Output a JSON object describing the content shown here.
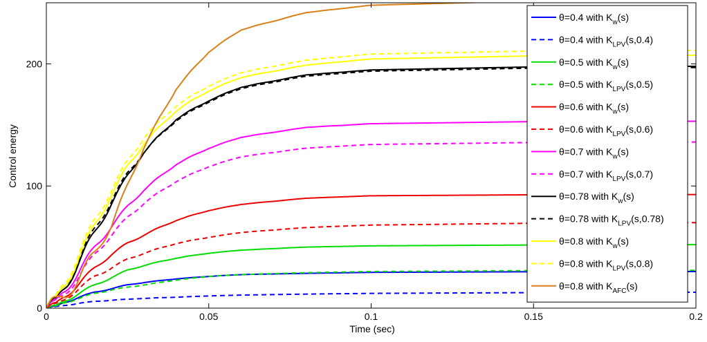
{
  "chart_data": {
    "type": "line",
    "title": "",
    "xlabel": "Time (sec)",
    "ylabel": "Control energy",
    "xlim": [
      0,
      0.2
    ],
    "ylim": [
      0,
      250
    ],
    "xticks": [
      0,
      0.05,
      0.1,
      0.15,
      0.2
    ],
    "xtick_labels": [
      "0",
      "0.05",
      "0.1",
      "0.15",
      "0.2"
    ],
    "yticks": [
      0,
      100,
      200
    ],
    "ytick_labels": [
      "0",
      "100",
      "200"
    ],
    "grid": false,
    "legend_position": "top-right",
    "series": [
      {
        "name": "θ=0.4 with K_w(s)",
        "label_main": "θ=0.4 with K",
        "label_sub": "w",
        "label_tail": "(s)",
        "color": "#0000ff",
        "dash": "solid",
        "final": 30,
        "points": [
          [
            0,
            0
          ],
          [
            0.003,
            1
          ],
          [
            0.005,
            4
          ],
          [
            0.01,
            9
          ],
          [
            0.015,
            13
          ],
          [
            0.02,
            16
          ],
          [
            0.025,
            19
          ],
          [
            0.03,
            21
          ],
          [
            0.04,
            24
          ],
          [
            0.05,
            26
          ],
          [
            0.06,
            27.5
          ],
          [
            0.08,
            28.5
          ],
          [
            0.1,
            29.3
          ],
          [
            0.15,
            29.8
          ],
          [
            0.2,
            30
          ]
        ]
      },
      {
        "name": "θ=0.4 with K_LPV(s,0.4)",
        "label_main": "θ=0.4 with K",
        "label_sub": "LPV",
        "label_tail": "(s,0.4)",
        "color": "#0000ff",
        "dash": "dashed",
        "final": 13,
        "points": [
          [
            0,
            0
          ],
          [
            0.003,
            1
          ],
          [
            0.005,
            2
          ],
          [
            0.01,
            4
          ],
          [
            0.015,
            5.5
          ],
          [
            0.02,
            6.5
          ],
          [
            0.03,
            8
          ],
          [
            0.04,
            9
          ],
          [
            0.05,
            10
          ],
          [
            0.06,
            10.7
          ],
          [
            0.08,
            11.5
          ],
          [
            0.1,
            12.1
          ],
          [
            0.15,
            12.7
          ],
          [
            0.2,
            13
          ]
        ]
      },
      {
        "name": "θ=0.5 with K_w(s)",
        "label_main": "θ=0.5 with K",
        "label_sub": "w",
        "label_tail": "(s)",
        "color": "#00dd00",
        "dash": "solid",
        "final": 52,
        "points": [
          [
            0,
            0
          ],
          [
            0.003,
            1
          ],
          [
            0.005,
            5
          ],
          [
            0.01,
            12
          ],
          [
            0.015,
            19
          ],
          [
            0.02,
            25
          ],
          [
            0.025,
            31
          ],
          [
            0.03,
            35
          ],
          [
            0.04,
            41
          ],
          [
            0.05,
            45
          ],
          [
            0.06,
            47.5
          ],
          [
            0.08,
            50
          ],
          [
            0.1,
            51
          ],
          [
            0.15,
            51.7
          ],
          [
            0.2,
            52
          ]
        ]
      },
      {
        "name": "θ=0.5 with K_LPV(s,0.5)",
        "label_main": "θ=0.5 with K",
        "label_sub": "LPV",
        "label_tail": "(s,0.5)",
        "color": "#00dd00",
        "dash": "dashed",
        "final": 31,
        "points": [
          [
            0,
            0
          ],
          [
            0.003,
            1
          ],
          [
            0.005,
            4
          ],
          [
            0.01,
            8
          ],
          [
            0.015,
            12
          ],
          [
            0.02,
            15
          ],
          [
            0.025,
            17
          ],
          [
            0.03,
            19
          ],
          [
            0.04,
            23
          ],
          [
            0.05,
            26
          ],
          [
            0.06,
            27.5
          ],
          [
            0.08,
            29
          ],
          [
            0.1,
            30
          ],
          [
            0.15,
            30.7
          ],
          [
            0.2,
            31
          ]
        ]
      },
      {
        "name": "θ=0.6 with K_w(s)",
        "label_main": "θ=0.6 with K",
        "label_sub": "w",
        "label_tail": "(s)",
        "color": "#ee0000",
        "dash": "solid",
        "final": 93,
        "points": [
          [
            0,
            0
          ],
          [
            0.003,
            2
          ],
          [
            0.005,
            8
          ],
          [
            0.01,
            20
          ],
          [
            0.015,
            33
          ],
          [
            0.02,
            44
          ],
          [
            0.025,
            53
          ],
          [
            0.03,
            60
          ],
          [
            0.04,
            72
          ],
          [
            0.05,
            80
          ],
          [
            0.06,
            85
          ],
          [
            0.08,
            90
          ],
          [
            0.1,
            92
          ],
          [
            0.15,
            92.8
          ],
          [
            0.2,
            93
          ]
        ]
      },
      {
        "name": "θ=0.6 with K_LPV(s,0.6)",
        "label_main": "θ=0.6 with K",
        "label_sub": "LPV",
        "label_tail": "(s,0.6)",
        "color": "#ee0000",
        "dash": "dashed",
        "final": 70,
        "points": [
          [
            0,
            0
          ],
          [
            0.003,
            2
          ],
          [
            0.005,
            6
          ],
          [
            0.01,
            16
          ],
          [
            0.015,
            26
          ],
          [
            0.02,
            33
          ],
          [
            0.025,
            40
          ],
          [
            0.03,
            45
          ],
          [
            0.04,
            53
          ],
          [
            0.05,
            58
          ],
          [
            0.06,
            62
          ],
          [
            0.08,
            66
          ],
          [
            0.1,
            68
          ],
          [
            0.15,
            69.5
          ],
          [
            0.2,
            70
          ]
        ]
      },
      {
        "name": "θ=0.7 with K_w(s)",
        "label_main": "θ=0.7 with K",
        "label_sub": "w",
        "label_tail": "(s)",
        "color": "#ff00ff",
        "dash": "solid",
        "final": 153,
        "points": [
          [
            0,
            0
          ],
          [
            0.003,
            3
          ],
          [
            0.005,
            12
          ],
          [
            0.01,
            30
          ],
          [
            0.015,
            50
          ],
          [
            0.02,
            67
          ],
          [
            0.025,
            83
          ],
          [
            0.03,
            97
          ],
          [
            0.04,
            118
          ],
          [
            0.05,
            131
          ],
          [
            0.06,
            140
          ],
          [
            0.08,
            148
          ],
          [
            0.1,
            151
          ],
          [
            0.15,
            152.7
          ],
          [
            0.2,
            153
          ]
        ]
      },
      {
        "name": "θ=0.7 with K_LPV(s,0.7)",
        "label_main": "θ=0.7 with K",
        "label_sub": "LPV",
        "label_tail": "(s,0.7)",
        "color": "#ff00ff",
        "dash": "dashed",
        "final": 136,
        "points": [
          [
            0,
            0
          ],
          [
            0.003,
            3
          ],
          [
            0.005,
            10
          ],
          [
            0.01,
            26
          ],
          [
            0.015,
            44
          ],
          [
            0.02,
            60
          ],
          [
            0.025,
            74
          ],
          [
            0.03,
            86
          ],
          [
            0.04,
            104
          ],
          [
            0.05,
            116
          ],
          [
            0.06,
            124
          ],
          [
            0.08,
            131
          ],
          [
            0.1,
            134
          ],
          [
            0.15,
            135.6
          ],
          [
            0.2,
            136
          ]
        ]
      },
      {
        "name": "θ=0.78 with K_w(s)",
        "label_main": "θ=0.78 with K",
        "label_sub": "w",
        "label_tail": "(s)",
        "color": "#000000",
        "dash": "solid",
        "final": 198,
        "points": [
          [
            0,
            0
          ],
          [
            0.003,
            3
          ],
          [
            0.005,
            14
          ],
          [
            0.01,
            38
          ],
          [
            0.015,
            62
          ],
          [
            0.02,
            86
          ],
          [
            0.025,
            108
          ],
          [
            0.03,
            128
          ],
          [
            0.04,
            155
          ],
          [
            0.05,
            170
          ],
          [
            0.06,
            181
          ],
          [
            0.08,
            191
          ],
          [
            0.1,
            195
          ],
          [
            0.15,
            197.5
          ],
          [
            0.2,
            198
          ]
        ]
      },
      {
        "name": "θ=0.78 with K_LPV(s,0.78)",
        "label_main": "θ=0.78 with K",
        "label_sub": "LPV",
        "label_tail": "(s,0.78)",
        "color": "#000000",
        "dash": "dashed",
        "final": 197,
        "points": [
          [
            0,
            0
          ],
          [
            0.003,
            4
          ],
          [
            0.005,
            16
          ],
          [
            0.01,
            40
          ],
          [
            0.015,
            65
          ],
          [
            0.02,
            88
          ],
          [
            0.025,
            110
          ],
          [
            0.03,
            128
          ],
          [
            0.04,
            154
          ],
          [
            0.05,
            169
          ],
          [
            0.06,
            180
          ],
          [
            0.08,
            190
          ],
          [
            0.1,
            194
          ],
          [
            0.15,
            196.5
          ],
          [
            0.2,
            197
          ]
        ]
      },
      {
        "name": "θ=0.8 with K_w(s)",
        "label_main": "θ=0.8 with K",
        "label_sub": "w",
        "label_tail": "(s)",
        "color": "#ffff00",
        "dash": "solid",
        "final": 207,
        "points": [
          [
            0,
            0
          ],
          [
            0.003,
            4
          ],
          [
            0.005,
            16
          ],
          [
            0.01,
            42
          ],
          [
            0.015,
            68
          ],
          [
            0.02,
            93
          ],
          [
            0.025,
            116
          ],
          [
            0.03,
            135
          ],
          [
            0.04,
            162
          ],
          [
            0.05,
            178
          ],
          [
            0.06,
            189
          ],
          [
            0.08,
            199
          ],
          [
            0.1,
            204
          ],
          [
            0.15,
            206.5
          ],
          [
            0.2,
            207
          ]
        ]
      },
      {
        "name": "θ=0.8 with K_LPV(s,0.8)",
        "label_main": "θ=0.8 with K",
        "label_sub": "LPV",
        "label_tail": "(s,0.8)",
        "color": "#ffff00",
        "dash": "dashed",
        "final": 211,
        "points": [
          [
            0,
            0
          ],
          [
            0.003,
            5
          ],
          [
            0.005,
            18
          ],
          [
            0.01,
            45
          ],
          [
            0.015,
            72
          ],
          [
            0.02,
            97
          ],
          [
            0.025,
            120
          ],
          [
            0.03,
            140
          ],
          [
            0.04,
            166
          ],
          [
            0.05,
            182
          ],
          [
            0.06,
            193
          ],
          [
            0.08,
            203
          ],
          [
            0.1,
            208
          ],
          [
            0.15,
            210.5
          ],
          [
            0.2,
            211
          ]
        ]
      },
      {
        "name": "θ=0.8 with K_AFC(s)",
        "label_main": "θ=0.8 with K",
        "label_sub": "AFC",
        "label_tail": "(s)",
        "color": "#d97f16",
        "dash": "solid",
        "final": 252,
        "points": [
          [
            0,
            0
          ],
          [
            0.003,
            2
          ],
          [
            0.005,
            8
          ],
          [
            0.01,
            25
          ],
          [
            0.015,
            45
          ],
          [
            0.02,
            68
          ],
          [
            0.025,
            100
          ],
          [
            0.03,
            132
          ],
          [
            0.04,
            180
          ],
          [
            0.05,
            210
          ],
          [
            0.06,
            228
          ],
          [
            0.08,
            242
          ],
          [
            0.1,
            248
          ],
          [
            0.15,
            251.5
          ],
          [
            0.2,
            252
          ]
        ]
      }
    ]
  }
}
